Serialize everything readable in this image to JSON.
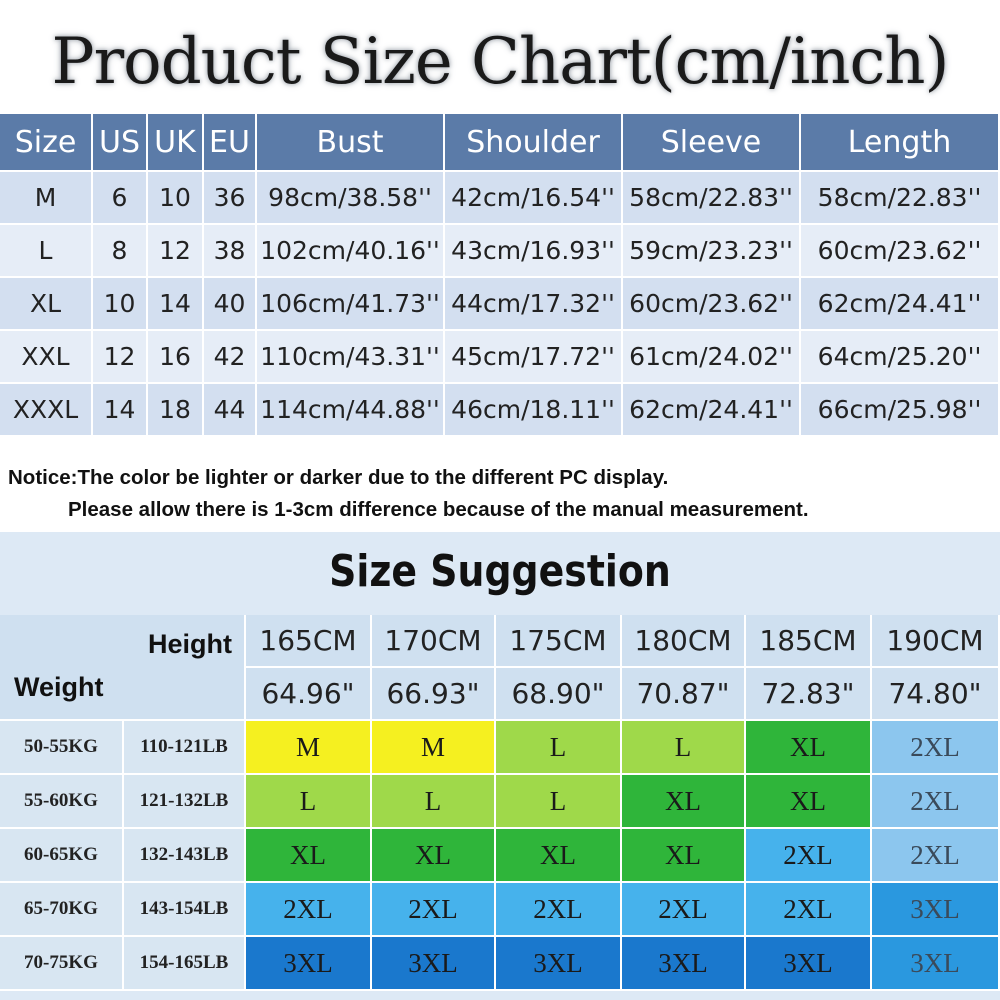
{
  "title": "Product Size Chart(cm/inch)",
  "size_chart": {
    "headers": [
      "Size",
      "US",
      "UK",
      "EU",
      "Bust",
      "Shoulder",
      "Sleeve",
      "Length"
    ],
    "rows": [
      [
        "M",
        "6",
        "10",
        "36",
        "98cm/38.58''",
        "42cm/16.54''",
        "58cm/22.83''",
        "58cm/22.83''"
      ],
      [
        "L",
        "8",
        "12",
        "38",
        "102cm/40.16''",
        "43cm/16.93''",
        "59cm/23.23''",
        "60cm/23.62''"
      ],
      [
        "XL",
        "10",
        "14",
        "40",
        "106cm/41.73''",
        "44cm/17.32''",
        "60cm/23.62''",
        "62cm/24.41''"
      ],
      [
        "XXL",
        "12",
        "16",
        "42",
        "110cm/43.31''",
        "45cm/17.72''",
        "61cm/24.02''",
        "64cm/25.20''"
      ],
      [
        "XXXL",
        "14",
        "18",
        "44",
        "114cm/44.88''",
        "46cm/18.11''",
        "62cm/24.41''",
        "66cm/25.98''"
      ]
    ]
  },
  "notice": {
    "line1": "Notice:The color be lighter or darker due to the different PC display.",
    "line2": "Please allow there is 1-3cm difference because of the manual measurement."
  },
  "suggestion": {
    "title": "Size Suggestion",
    "height_label": "Height",
    "weight_label": "Weight",
    "heights_cm": [
      "165CM",
      "170CM",
      "175CM",
      "180CM",
      "185CM",
      "190CM"
    ],
    "heights_in": [
      "64.96\"",
      "66.93\"",
      "68.90\"",
      "70.87\"",
      "72.83\"",
      "74.80\""
    ],
    "rows": [
      {
        "kg": "50-55KG",
        "lb": "110-121LB",
        "sizes": [
          "M",
          "M",
          "L",
          "L",
          "XL",
          "2XL"
        ],
        "colors": [
          "#f5f020",
          "#f5f020",
          "#9fd94a",
          "#9fd94a",
          "#2fb53a",
          "#8cc6ee"
        ]
      },
      {
        "kg": "55-60KG",
        "lb": "121-132LB",
        "sizes": [
          "L",
          "L",
          "L",
          "XL",
          "XL",
          "2XL"
        ],
        "colors": [
          "#9fd94a",
          "#9fd94a",
          "#9fd94a",
          "#2fb53a",
          "#2fb53a",
          "#8cc6ee"
        ]
      },
      {
        "kg": "60-65KG",
        "lb": "132-143LB",
        "sizes": [
          "XL",
          "XL",
          "XL",
          "XL",
          "2XL",
          "2XL"
        ],
        "colors": [
          "#2fb53a",
          "#2fb53a",
          "#2fb53a",
          "#2fb53a",
          "#46b2ec",
          "#8cc6ee"
        ]
      },
      {
        "kg": "65-70KG",
        "lb": "143-154LB",
        "sizes": [
          "2XL",
          "2XL",
          "2XL",
          "2XL",
          "2XL",
          "3XL"
        ],
        "colors": [
          "#46b2ec",
          "#46b2ec",
          "#46b2ec",
          "#46b2ec",
          "#46b2ec",
          "#2a98df"
        ]
      },
      {
        "kg": "70-75KG",
        "lb": "154-165LB",
        "sizes": [
          "3XL",
          "3XL",
          "3XL",
          "3XL",
          "3XL",
          "3XL"
        ],
        "colors": [
          "#1a78cd",
          "#1a78cd",
          "#1a78cd",
          "#1a78cd",
          "#1a78cd",
          "#2a98df"
        ]
      }
    ]
  }
}
